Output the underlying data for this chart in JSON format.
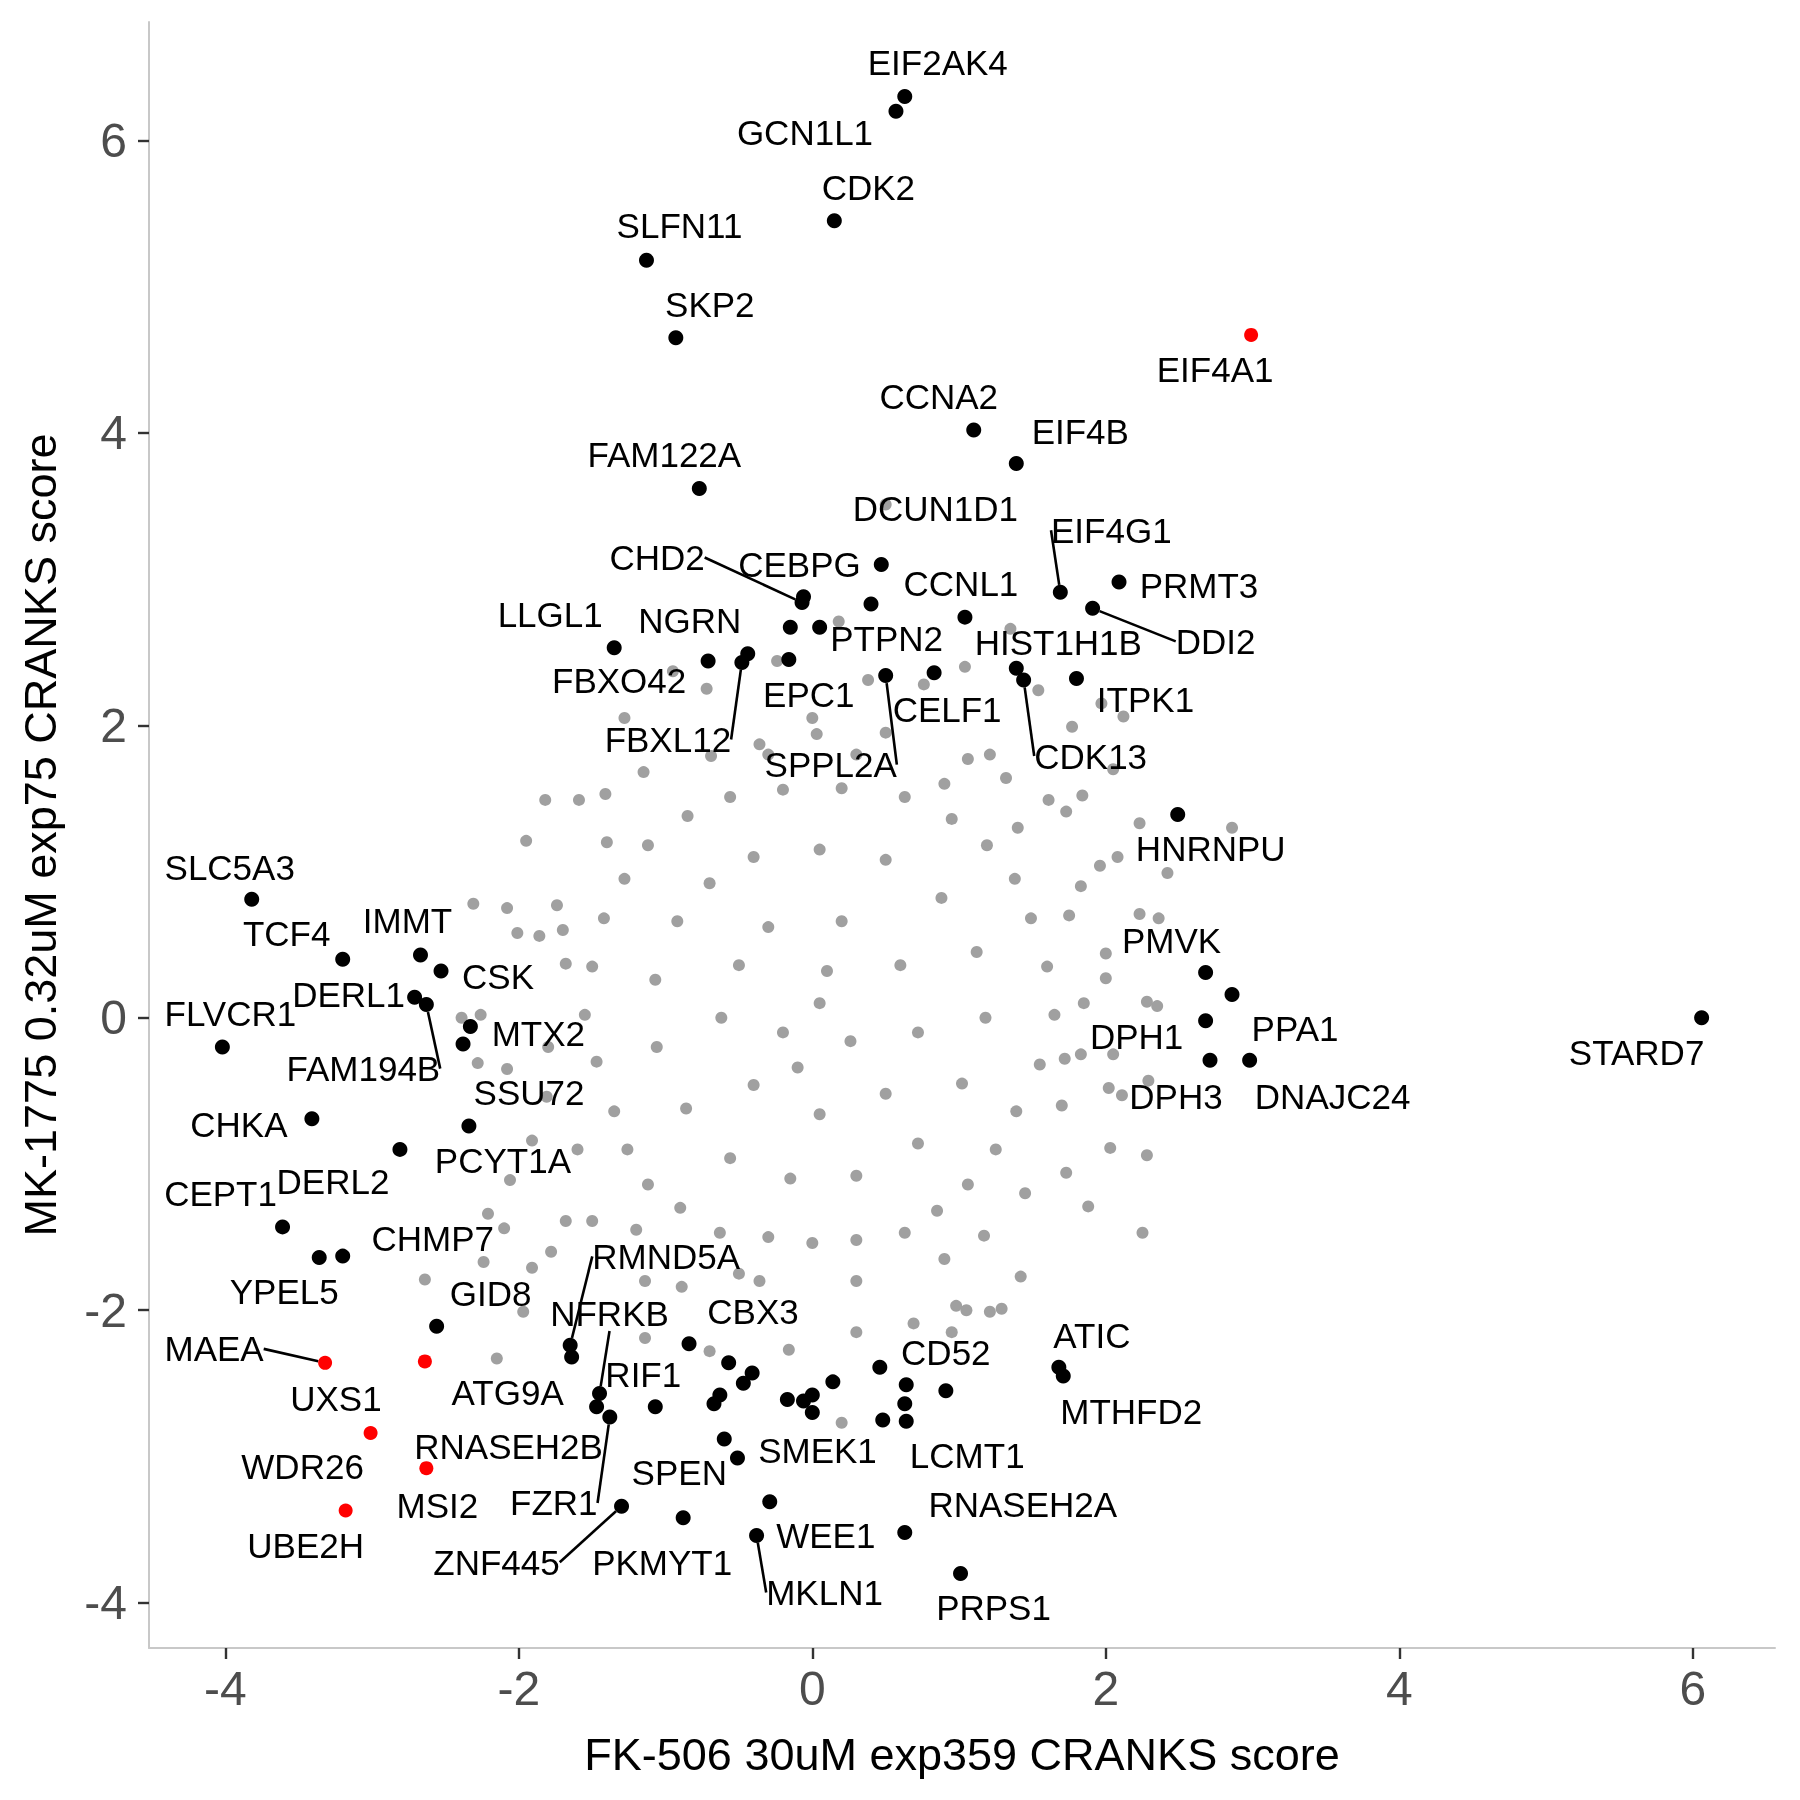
{
  "chart_data": {
    "type": "scatter",
    "xlabel": "FK-506 30uM exp359 CRANKS score",
    "ylabel": "MK-1775 0.32uM exp75 CRANKS score",
    "xlim": [
      -4.52,
      6.56
    ],
    "ylim": [
      -4.31,
      6.81
    ],
    "xticks": [
      -4,
      -2,
      0,
      2,
      4,
      6
    ],
    "yticks": [
      -4,
      -2,
      0,
      2,
      4,
      6
    ],
    "grid": false,
    "marker": "circle",
    "series": [
      {
        "color": "#a0a0a0",
        "x": [
          -0.56,
          -0.2,
          0.2,
          0.63,
          0.95,
          1.19,
          1.38,
          1.49,
          1.6,
          1.65,
          1.55,
          1.39,
          1.25,
          1.06,
          0.85,
          0.63,
          0.3,
          0.0,
          -0.3,
          -0.63,
          -0.9,
          -1.12,
          -1.26,
          -1.35,
          -1.47,
          -1.55,
          -1.5,
          -1.42,
          -1.28,
          -1.12,
          -0.85,
          -0.4,
          0.05,
          0.5,
          0.88,
          1.12,
          1.18,
          1.02,
          0.72,
          0.3,
          -0.15,
          -0.56,
          -0.86,
          -1.06,
          -1.07,
          -0.92,
          -0.7,
          -0.3,
          0.2,
          0.6,
          0.72,
          0.5,
          0.05,
          -0.4,
          -0.62,
          -0.5,
          0.05,
          0.26,
          -0.2,
          0.1,
          -0.1,
          -0.3,
          0.3,
          0.9,
          1.4,
          1.75,
          1.85,
          1.7,
          1.45,
          0.9,
          0.3,
          -0.5,
          -1.2,
          -1.6,
          -1.8,
          -1.7,
          -1.4,
          0.5,
          0.18,
          1.04,
          1.54,
          1.35,
          -0.24,
          -0.95,
          -0.72,
          -1.28,
          -1.82,
          -1.59,
          -1.41,
          1.97,
          2.12,
          1.77,
          1.84,
          1.61,
          1.21,
          2.05,
          1.73,
          2.23,
          2.86,
          2.08,
          2.42,
          1.96,
          1.83,
          2.23,
          2.36,
          2.0,
          2.28,
          2.35,
          2.0,
          1.83,
          2.05,
          2.29,
          2.11,
          -1.95,
          -2.31,
          -2.08,
          -1.74,
          -2.01,
          -1.86,
          -1.68,
          -2.39,
          -2.26,
          -2.28,
          -2.08,
          -1.81,
          -1.91,
          -2.06,
          -1.68,
          -2.21,
          -2.1,
          -2.24,
          -1.78,
          -1.5,
          -1.14,
          -0.89,
          -0.36,
          0.3,
          0.69,
          0.98,
          1.29,
          1.42,
          1.17,
          1.88,
          2.25,
          2.03,
          2.28,
          1.73,
          2.02,
          1.72,
          1.32,
          1.06,
          0.5,
          0.03,
          -0.36,
          -0.69,
          -1.15,
          0.76,
          0.38,
          0.0,
          -2.64,
          -2.15,
          -1.91,
          -1.97,
          -1.14,
          -0.7,
          -0.16,
          0.2,
          0.95,
          1.21,
          1.05
        ],
        "values": [
          1.51,
          1.56,
          1.57,
          1.51,
          1.36,
          1.18,
          0.95,
          0.68,
          0.35,
          0.02,
          -0.32,
          -0.64,
          -0.9,
          -1.14,
          -1.32,
          -1.47,
          -1.52,
          -1.54,
          -1.5,
          -1.47,
          -1.3,
          -1.14,
          -0.9,
          -0.64,
          -0.3,
          0.02,
          0.35,
          0.68,
          0.95,
          1.18,
          1.38,
          1.1,
          1.15,
          1.08,
          0.82,
          0.45,
          0.0,
          -0.45,
          -0.86,
          -1.08,
          -1.1,
          -0.96,
          -0.62,
          -0.2,
          0.26,
          0.66,
          0.92,
          0.62,
          0.66,
          0.36,
          -0.1,
          -0.52,
          -0.66,
          -0.46,
          0.0,
          0.36,
          0.1,
          -0.16,
          -0.1,
          0.32,
          -0.34,
          1.8,
          1.8,
          1.6,
          1.3,
          0.7,
          0.1,
          -0.6,
          -1.2,
          -1.65,
          -1.8,
          -1.75,
          -1.45,
          -0.9,
          -0.2,
          0.6,
          1.2,
          3.51,
          2.71,
          2.4,
          2.24,
          2.66,
          2.44,
          2.37,
          2.25,
          2.05,
          1.49,
          1.49,
          1.53,
          2.15,
          2.06,
          1.99,
          1.52,
          1.49,
          1.8,
          1.7,
          1.41,
          1.33,
          1.3,
          1.1,
          0.99,
          1.04,
          0.9,
          0.71,
          0.68,
          0.44,
          0.11,
          0.08,
          0.27,
          -0.25,
          -0.25,
          -0.43,
          -0.53,
          1.21,
          0.78,
          0.75,
          0.77,
          0.58,
          0.56,
          0.37,
          0.0,
          0.02,
          -0.31,
          -0.35,
          -0.54,
          -0.84,
          -1.11,
          -1.39,
          -1.34,
          -1.44,
          -1.67,
          -1.6,
          -1.39,
          -1.8,
          -1.84,
          -1.8,
          -2.15,
          -2.09,
          -1.97,
          -1.99,
          -1.77,
          -1.49,
          -1.29,
          -1.47,
          -0.89,
          -0.94,
          -1.06,
          -0.48,
          -0.28,
          1.64,
          1.77,
          1.95,
          1.94,
          1.87,
          1.79,
          1.68,
          2.28,
          2.31,
          2.05,
          -1.79,
          -2.33,
          -1.71,
          -2.01,
          -2.19,
          -2.28,
          -2.27,
          -2.77,
          -2.15,
          -2.01,
          -2.0
        ]
      },
      {
        "color": "#000000",
        "x": [
          0.63,
          0.57,
          0.15,
          -1.13,
          -0.93,
          1.1,
          1.39,
          -0.77,
          0.47,
          -0.06,
          -0.07,
          0.4,
          1.04,
          -0.15,
          0.05,
          1.69,
          2.09,
          1.91,
          -1.35,
          -0.71,
          -0.44,
          -0.48,
          -0.16,
          0.5,
          0.83,
          1.39,
          1.44,
          1.8,
          2.49,
          2.68,
          2.86,
          2.68,
          2.71,
          2.98,
          6.06,
          -3.82,
          -3.2,
          -2.67,
          -2.53,
          -2.71,
          -2.63,
          -4.02,
          -2.33,
          -2.38,
          -3.41,
          -2.81,
          -2.34,
          -3.61,
          -3.36,
          -3.2,
          -2.56,
          -1.65,
          -1.64,
          -1.45,
          -1.47,
          -1.38,
          -1.07,
          -0.84,
          -1.3,
          -0.88,
          -0.6,
          -0.51,
          -0.29,
          -0.38,
          -0.57,
          -0.41,
          -0.47,
          -0.63,
          -0.67,
          -0.17,
          -0.06,
          0.0,
          0.0,
          0.14,
          0.46,
          0.64,
          0.91,
          0.48,
          0.63,
          0.64,
          1.68,
          1.71,
          0.63,
          1.01
        ],
        "values": [
          6.3,
          6.2,
          5.45,
          5.18,
          4.65,
          4.02,
          3.79,
          3.62,
          3.1,
          2.88,
          2.84,
          2.83,
          2.74,
          2.67,
          2.67,
          2.91,
          2.98,
          2.8,
          2.53,
          2.44,
          2.49,
          2.43,
          2.45,
          2.34,
          2.36,
          2.39,
          2.31,
          2.32,
          1.39,
          0.31,
          0.16,
          -0.02,
          -0.29,
          -0.29,
          0.0,
          0.81,
          0.4,
          0.43,
          0.32,
          0.14,
          0.09,
          -0.2,
          -0.06,
          -0.18,
          -0.69,
          -0.9,
          -0.74,
          -1.43,
          -1.64,
          -1.63,
          -2.11,
          -2.24,
          -2.32,
          -2.57,
          -2.66,
          -2.73,
          -2.66,
          -2.23,
          -3.34,
          -3.42,
          -2.88,
          -3.01,
          -3.31,
          -3.54,
          -2.36,
          -2.43,
          -2.5,
          -2.58,
          -2.64,
          -2.61,
          -2.62,
          -2.58,
          -2.7,
          -2.49,
          -2.39,
          -2.51,
          -2.55,
          -2.75,
          -2.64,
          -2.76,
          -2.39,
          -2.45,
          -3.52,
          -3.8
        ]
      },
      {
        "color": "#ff0000",
        "x": [
          2.99,
          -3.32,
          -2.64,
          -3.01,
          -2.63,
          -3.18
        ],
        "values": [
          4.67,
          -2.36,
          -2.35,
          -2.84,
          -3.08,
          -3.37
        ]
      }
    ],
    "annotations": [
      {
        "text": "EIF2AK4",
        "x": 0.63,
        "y": 6.3
      },
      {
        "text": "GCN1L1",
        "x": 0.57,
        "y": 6.2
      },
      {
        "text": "CDK2",
        "x": 0.15,
        "y": 5.45
      },
      {
        "text": "SLFN11",
        "x": -1.13,
        "y": 5.18
      },
      {
        "text": "SKP2",
        "x": -0.93,
        "y": 4.65
      },
      {
        "text": "EIF4A1",
        "x": 2.99,
        "y": 4.67
      },
      {
        "text": "CCNA2",
        "x": 1.1,
        "y": 4.02
      },
      {
        "text": "EIF4B",
        "x": 1.39,
        "y": 3.79
      },
      {
        "text": "FAM122A",
        "x": -0.77,
        "y": 3.62
      },
      {
        "text": "DCUN1D1",
        "x": 0.47,
        "y": 3.1
      },
      {
        "text": "CHD2",
        "x": -0.07,
        "y": 2.84
      },
      {
        "text": "CEBPG",
        "x": -0.06,
        "y": 2.88
      },
      {
        "text": "CCNL1",
        "x": 1.04,
        "y": 2.74
      },
      {
        "text": "PTPN2",
        "x": 0.05,
        "y": 2.67
      },
      {
        "text": "EIF4G1",
        "x": 1.69,
        "y": 2.91
      },
      {
        "text": "PRMT3",
        "x": 2.09,
        "y": 2.98
      },
      {
        "text": "DDI2",
        "x": 1.91,
        "y": 2.8
      },
      {
        "text": "LLGL1",
        "x": -1.35,
        "y": 2.53
      },
      {
        "text": "NGRN",
        "x": -0.44,
        "y": 2.49
      },
      {
        "text": "FBXO42",
        "x": -0.71,
        "y": 2.44
      },
      {
        "text": "FBXL12",
        "x": -0.48,
        "y": 2.43
      },
      {
        "text": "EPC1",
        "x": -0.16,
        "y": 2.45
      },
      {
        "text": "SPPL2A",
        "x": 0.5,
        "y": 2.34
      },
      {
        "text": "CELF1",
        "x": 0.83,
        "y": 2.36
      },
      {
        "text": "HIST1H1B",
        "x": 1.39,
        "y": 2.39
      },
      {
        "text": "CDK13",
        "x": 1.44,
        "y": 2.31
      },
      {
        "text": "ITPK1",
        "x": 1.8,
        "y": 2.32
      },
      {
        "text": "HNRNPU",
        "x": 2.49,
        "y": 1.39
      },
      {
        "text": "PMVK",
        "x": 2.68,
        "y": 0.31
      },
      {
        "text": "PPA1",
        "x": 2.86,
        "y": 0.16
      },
      {
        "text": "DPH1",
        "x": 2.68,
        "y": -0.02
      },
      {
        "text": "DPH3",
        "x": 2.71,
        "y": -0.29
      },
      {
        "text": "DNAJC24",
        "x": 2.98,
        "y": -0.29
      },
      {
        "text": "STARD7",
        "x": 6.06,
        "y": 0.0
      },
      {
        "text": "SLC5A3",
        "x": -3.82,
        "y": 0.81
      },
      {
        "text": "TCF4",
        "x": -3.2,
        "y": 0.4
      },
      {
        "text": "IMMT",
        "x": -2.67,
        "y": 0.43
      },
      {
        "text": "CSK",
        "x": -2.53,
        "y": 0.32
      },
      {
        "text": "DERL1",
        "x": -2.71,
        "y": 0.14
      },
      {
        "text": "FAM194B",
        "x": -2.63,
        "y": 0.09
      },
      {
        "text": "FLVCR1",
        "x": -4.02,
        "y": -0.2
      },
      {
        "text": "MTX2",
        "x": -2.33,
        "y": -0.06
      },
      {
        "text": "SSU72",
        "x": -2.38,
        "y": -0.18
      },
      {
        "text": "CHKA",
        "x": -3.41,
        "y": -0.69
      },
      {
        "text": "DERL2",
        "x": -2.81,
        "y": -0.9
      },
      {
        "text": "PCYT1A",
        "x": -2.34,
        "y": -0.74
      },
      {
        "text": "CEPT1",
        "x": -3.61,
        "y": -1.43
      },
      {
        "text": "YPEL5",
        "x": -3.36,
        "y": -1.64
      },
      {
        "text": "CHMP7",
        "x": -3.2,
        "y": -1.63
      },
      {
        "text": "GID8",
        "x": -2.56,
        "y": -2.11
      },
      {
        "text": "MAEA",
        "x": -3.32,
        "y": -2.36
      },
      {
        "text": "UXS1",
        "x": -2.64,
        "y": -2.35
      },
      {
        "text": "WDR26",
        "x": -3.01,
        "y": -2.84
      },
      {
        "text": "MSI2",
        "x": -2.63,
        "y": -3.08
      },
      {
        "text": "UBE2H",
        "x": -3.18,
        "y": -3.37
      },
      {
        "text": "RMND5A",
        "x": -1.65,
        "y": -2.24
      },
      {
        "text": "ATG9A",
        "x": -1.64,
        "y": -2.32
      },
      {
        "text": "NFRKB",
        "x": -1.45,
        "y": -2.57
      },
      {
        "text": "RNASEH2B",
        "x": -1.47,
        "y": -2.66
      },
      {
        "text": "FZR1",
        "x": -1.38,
        "y": -2.73
      },
      {
        "text": "RIF1",
        "x": -1.07,
        "y": -2.66
      },
      {
        "text": "CBX3",
        "x": -0.84,
        "y": -2.23
      },
      {
        "text": "ZNF445",
        "x": -1.3,
        "y": -3.34
      },
      {
        "text": "PKMYT1",
        "x": -0.88,
        "y": -3.42
      },
      {
        "text": "SPEN",
        "x": -0.6,
        "y": -2.88
      },
      {
        "text": "SMEK1",
        "x": -0.51,
        "y": -3.01
      },
      {
        "text": "WEE1",
        "x": -0.29,
        "y": -3.31
      },
      {
        "text": "MKLN1",
        "x": -0.38,
        "y": -3.54
      },
      {
        "text": "CD52",
        "x": 0.46,
        "y": -2.39
      },
      {
        "text": "LCMT1",
        "x": 0.64,
        "y": -2.76
      },
      {
        "text": "ATIC",
        "x": 1.68,
        "y": -2.39
      },
      {
        "text": "MTHFD2",
        "x": 1.71,
        "y": -2.45
      },
      {
        "text": "RNASEH2A",
        "x": 0.63,
        "y": -3.52
      },
      {
        "text": "PRPS1",
        "x": 1.01,
        "y": -3.8
      }
    ]
  }
}
